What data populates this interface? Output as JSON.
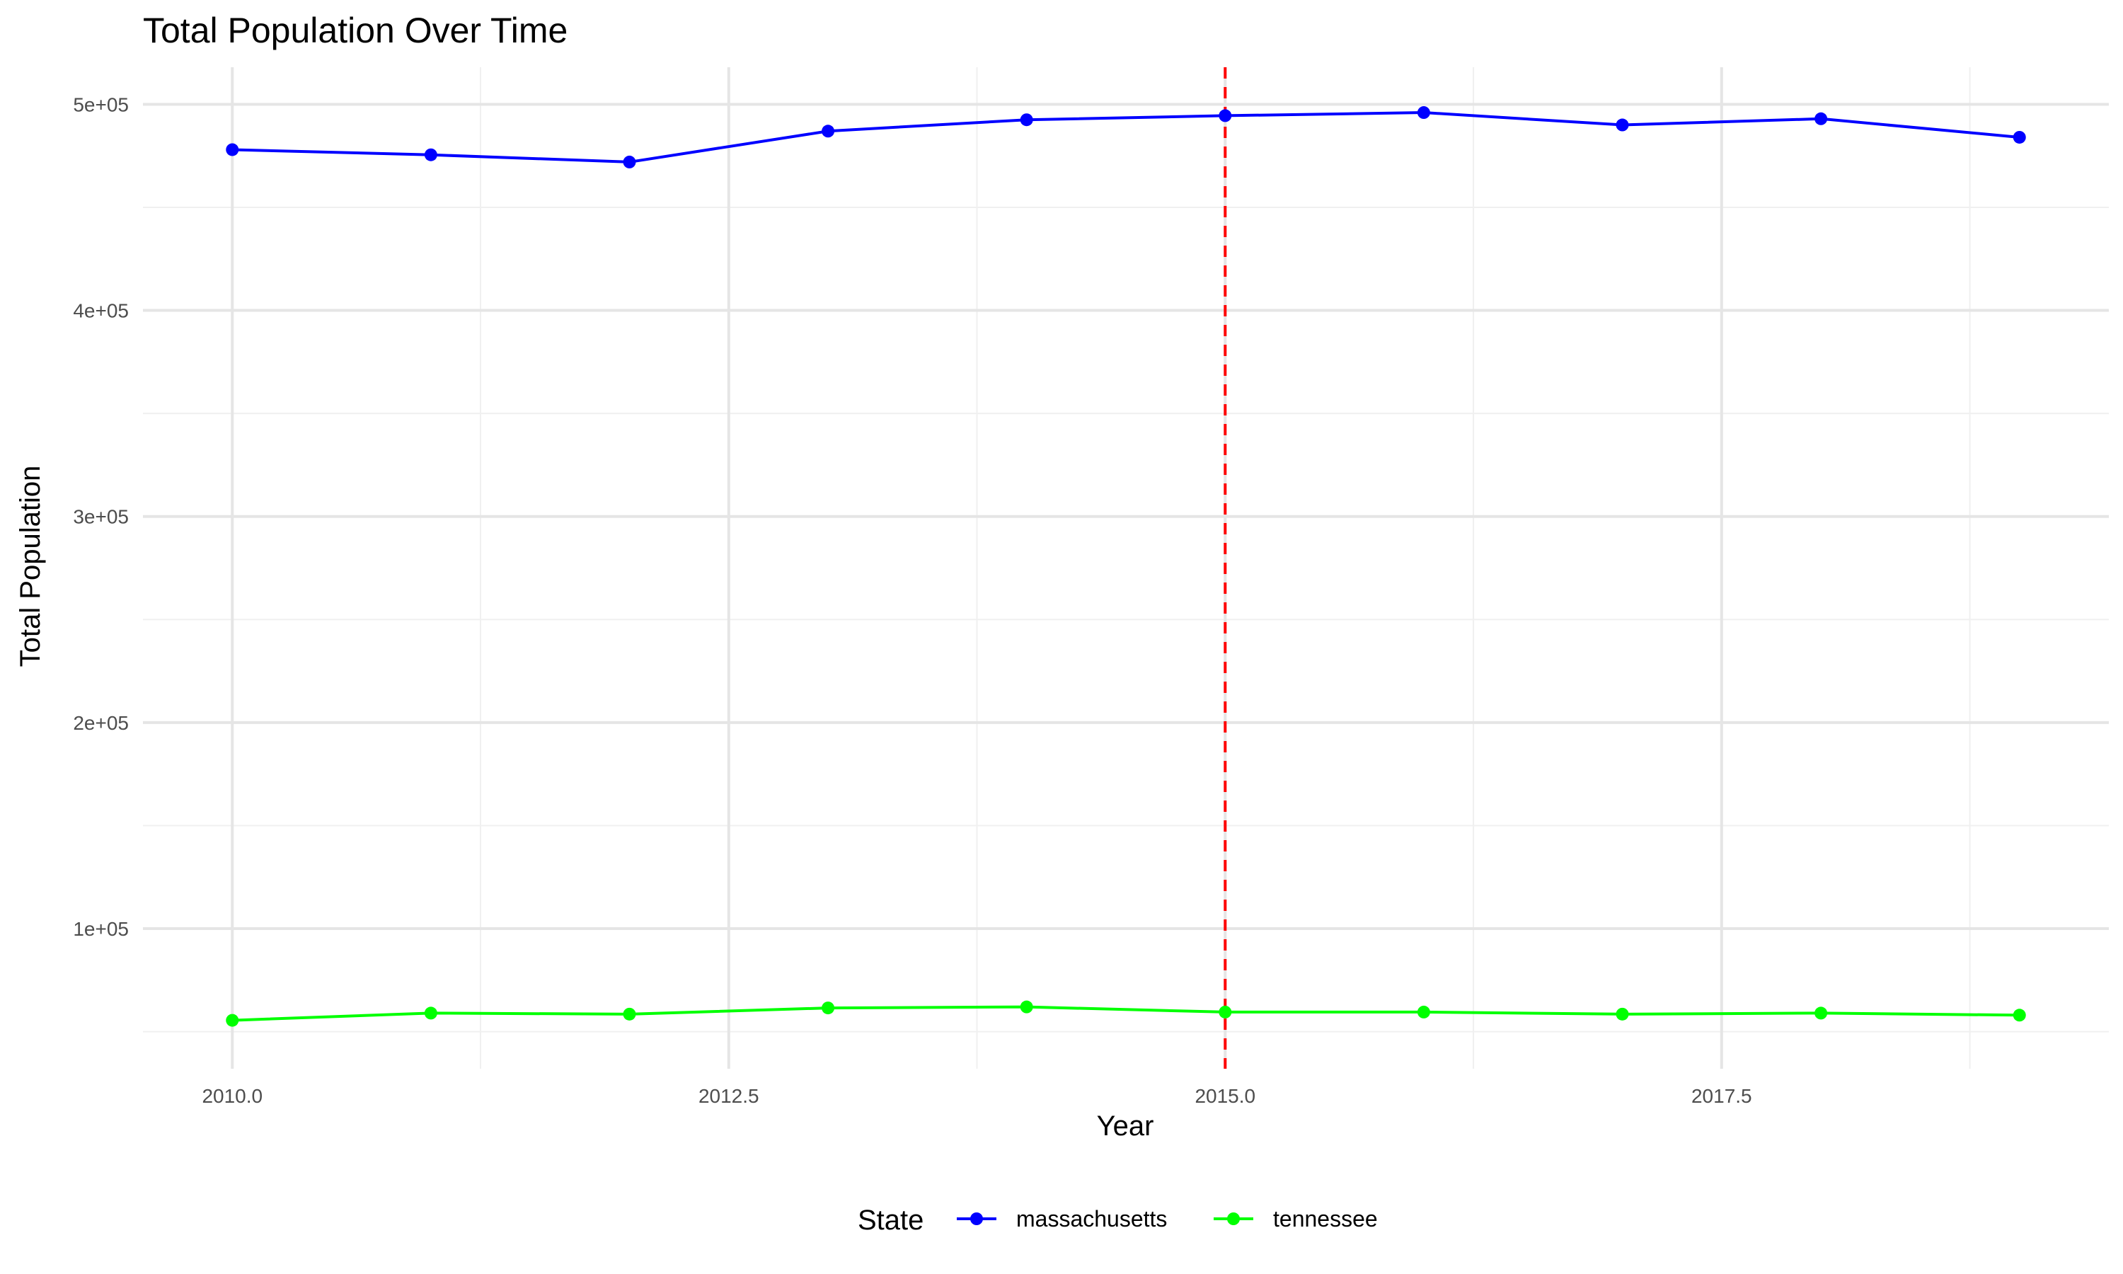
{
  "chart_data": {
    "type": "line",
    "title": "Total Population Over Time",
    "xlabel": "Year",
    "ylabel": "Total Population",
    "x": [
      2010,
      2011,
      2012,
      2013,
      2014,
      2015,
      2016,
      2017,
      2018,
      2019
    ],
    "xlim": [
      2009.55,
      2019.45
    ],
    "ylim": [
      32000,
      518000
    ],
    "x_ticks": [
      2010,
      2012.5,
      2015,
      2017.5
    ],
    "x_tick_labels": [
      "2010.0",
      "2012.5",
      "2015.0",
      "2017.5"
    ],
    "x_minor_ticks": [
      2011.25,
      2013.75,
      2016.25,
      2018.75
    ],
    "y_ticks": [
      100000,
      200000,
      300000,
      400000,
      500000
    ],
    "y_tick_labels": [
      "1e+05",
      "2e+05",
      "3e+05",
      "4e+05",
      "5e+05"
    ],
    "y_minor_ticks": [
      50000,
      150000,
      250000,
      350000,
      450000
    ],
    "grid": true,
    "series": [
      {
        "name": "massachusetts",
        "color": "#0000ff",
        "values": [
          478000,
          475500,
          472000,
          487000,
          492500,
          494500,
          496000,
          490000,
          493000,
          484000
        ]
      },
      {
        "name": "tennessee",
        "color": "#00ff00",
        "values": [
          55500,
          59000,
          58500,
          61500,
          62000,
          59500,
          59500,
          58500,
          59000,
          58000
        ]
      }
    ],
    "annotations": [
      {
        "type": "vline",
        "x": 2015,
        "color": "#ff0000",
        "style": "dashed"
      }
    ],
    "legend": {
      "title": "State",
      "position": "bottom",
      "entries": [
        "massachusetts",
        "tennessee"
      ]
    }
  }
}
